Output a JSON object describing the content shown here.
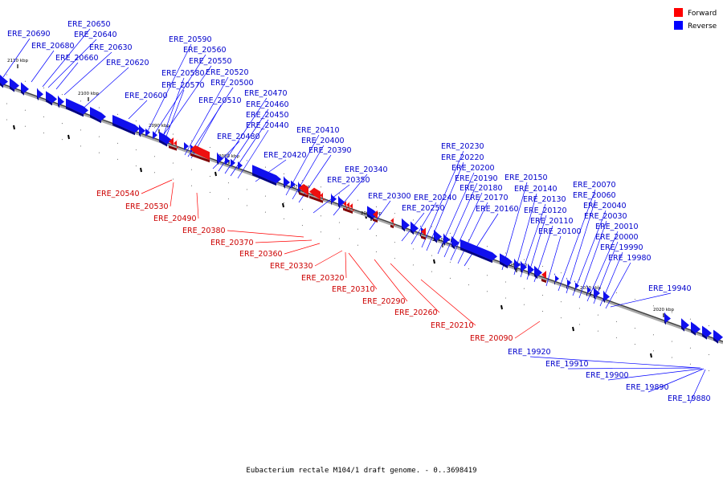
{
  "caption": "Eubacterium rectale M104/1 draft genome. - 0..3698419",
  "legend": [
    {
      "label": "Forward",
      "color": "#ff0000"
    },
    {
      "label": "Reverse",
      "color": "#0000ff"
    }
  ],
  "kbp_ticks": [
    "2110 kbp",
    "2100 kbp",
    "2090 kbp",
    "2080 kbp",
    "2070 kbp",
    "2060 kbp",
    "2050 kbp",
    "2040 kbp",
    "2030 kbp",
    "2020 kbp"
  ],
  "reverse_genes": [
    "ERE_20690",
    "ERE_20680",
    "ERE_20650",
    "ERE_20640",
    "ERE_20660",
    "ERE_20630",
    "ERE_20620",
    "ERE_20600",
    "ERE_20590",
    "ERE_20560",
    "ERE_20550",
    "ERE_20580",
    "ERE_20570",
    "ERE_20520",
    "ERE_20500",
    "ERE_20510",
    "ERE_20480",
    "ERE_20470",
    "ERE_20460",
    "ERE_20450",
    "ERE_20440",
    "ERE_20420",
    "ERE_20410",
    "ERE_20400",
    "ERE_20390",
    "ERE_20350",
    "ERE_20340",
    "ERE_20300",
    "ERE_20250",
    "ERE_20240",
    "ERE_20230",
    "ERE_20220",
    "ERE_20200",
    "ERE_20190",
    "ERE_20180",
    "ERE_20170",
    "ERE_20160",
    "ERE_20150",
    "ERE_20140",
    "ERE_20130",
    "ERE_20120",
    "ERE_20110",
    "ERE_20100",
    "ERE_20070",
    "ERE_20060",
    "ERE_20040",
    "ERE_20030",
    "ERE_20010",
    "ERE_20000",
    "ERE_19990",
    "ERE_19980",
    "ERE_19940",
    "ERE_19920",
    "ERE_19910",
    "ERE_19900",
    "ERE_19890",
    "ERE_19880"
  ],
  "forward_genes": [
    "ERE_20540",
    "ERE_20530",
    "ERE_20490",
    "ERE_20380",
    "ERE_20370",
    "ERE_20360",
    "ERE_20330",
    "ERE_20320",
    "ERE_20310",
    "ERE_20290",
    "ERE_20260",
    "ERE_20210",
    "ERE_20090"
  ]
}
